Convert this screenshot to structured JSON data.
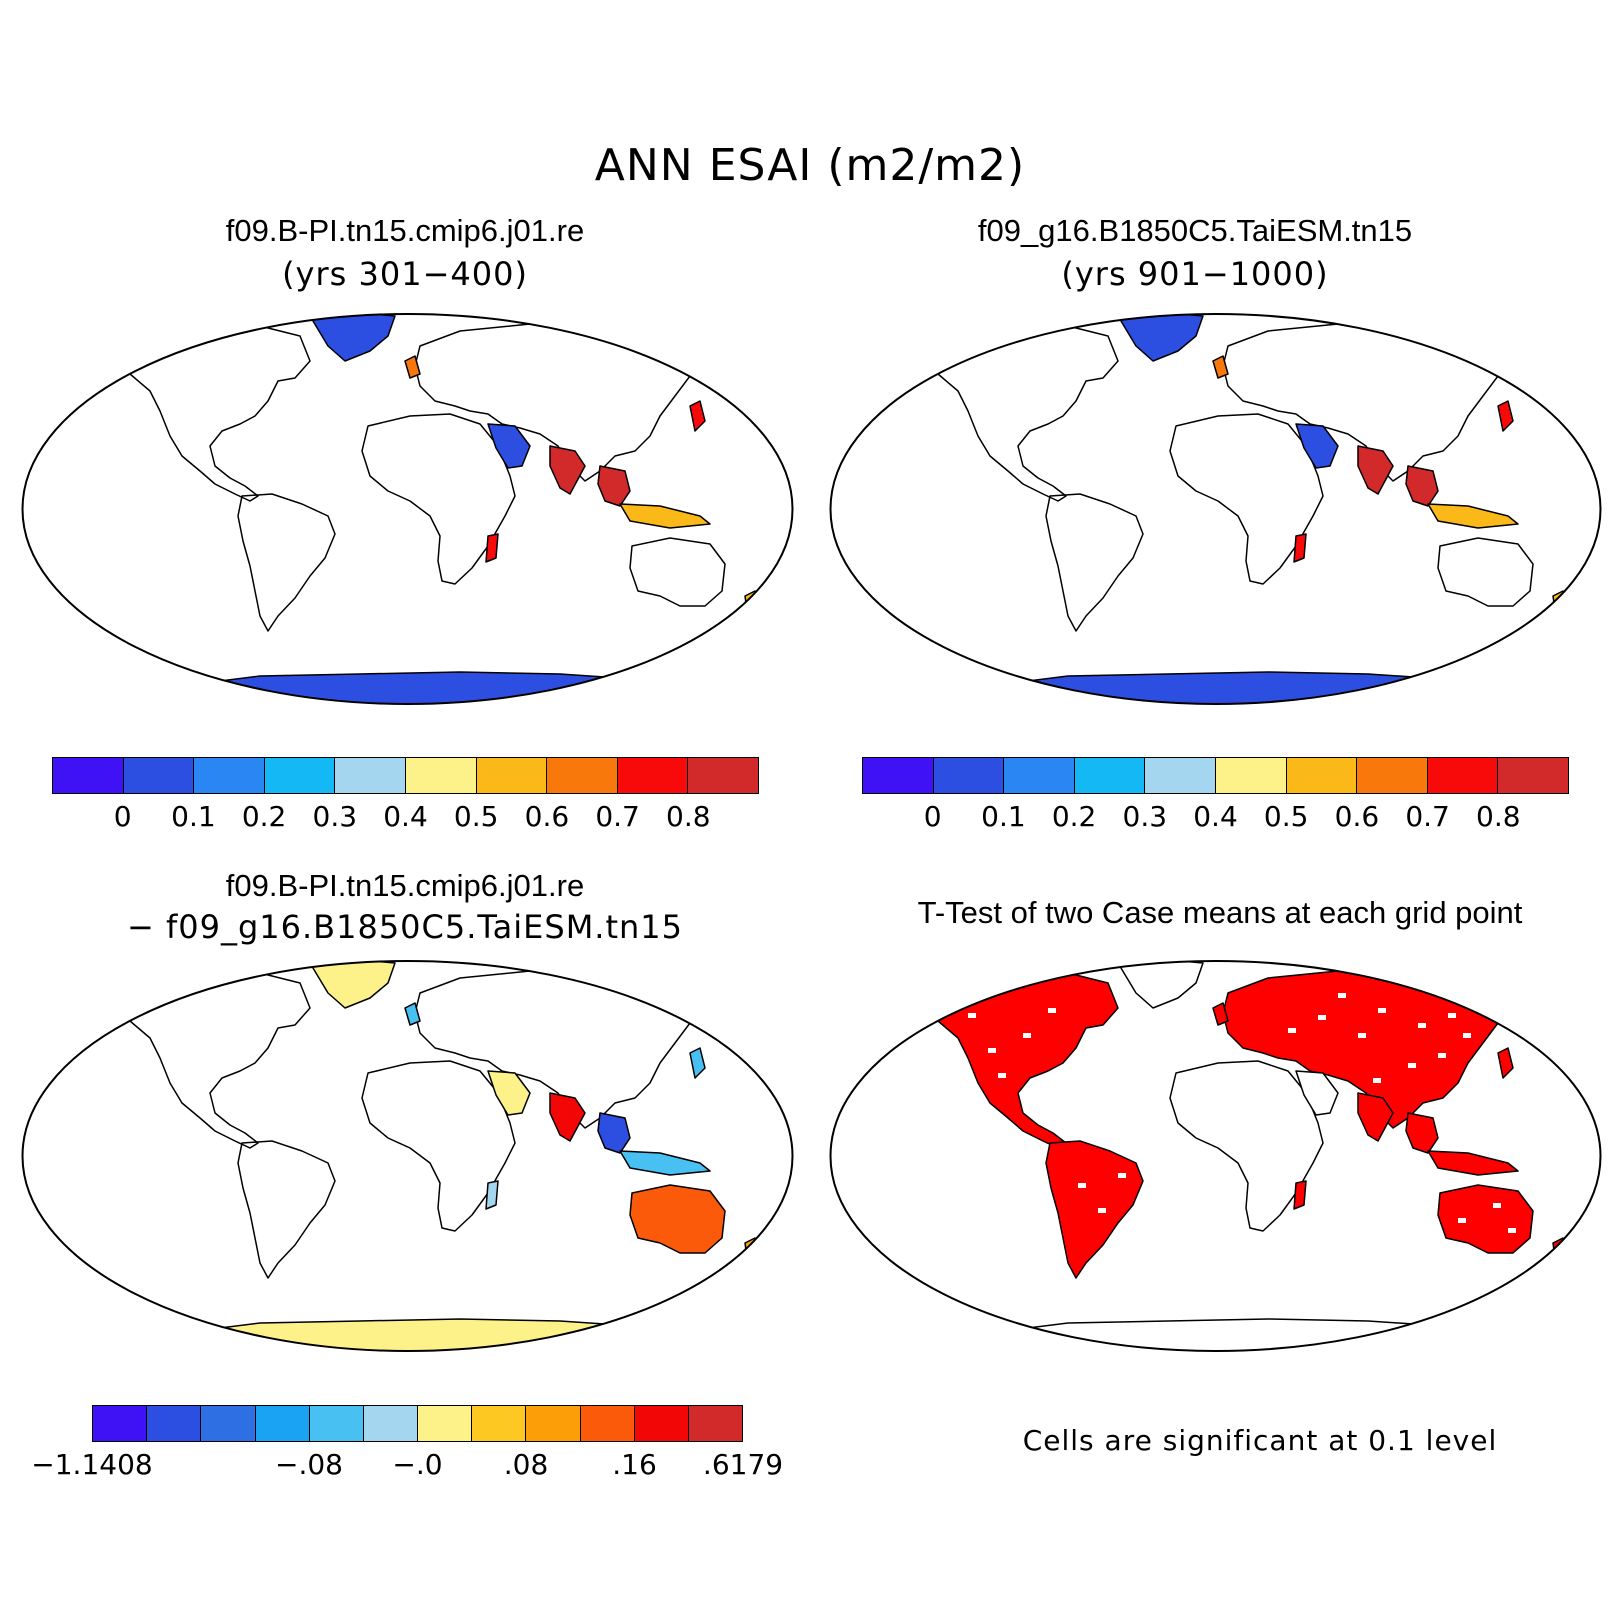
{
  "figure": {
    "title": "ANN ESAI (m2/m2)"
  },
  "panels": [
    {
      "id": "case1",
      "title": "f09.B-PI.tn15.cmip6.j01.re",
      "subtitle": "(yrs 301−400)",
      "scheme": "abs"
    },
    {
      "id": "case2",
      "title": "f09_g16.B1850C5.TaiESM.tn15",
      "subtitle": "(yrs 901−1000)",
      "scheme": "abs"
    },
    {
      "id": "diff",
      "title": "f09.B-PI.tn15.cmip6.j01.re",
      "subtitle": "− f09_g16.B1850C5.TaiESM.tn15",
      "scheme": "diff"
    },
    {
      "id": "ttest",
      "title": "T-Test of two Case means at each grid point",
      "subtitle": "",
      "scheme": "sig"
    }
  ],
  "colorbars": {
    "abs": {
      "colors": [
        "#3f12f5",
        "#2c4fe2",
        "#2a86f2",
        "#13b8f4",
        "#a4d6ef",
        "#fdf18a",
        "#fbb919",
        "#f8780b",
        "#f90a0a",
        "#d22a2a"
      ],
      "labels": [
        "0",
        "0.1",
        "0.2",
        "0.3",
        "0.4",
        "0.5",
        "0.6",
        "0.7",
        "0.8"
      ]
    },
    "diff": {
      "colors": [
        "#3f12f5",
        "#2c4fe2",
        "#2f6fe4",
        "#1aa3f2",
        "#49c0f2",
        "#a4d6ef",
        "#fdf18a",
        "#fdc821",
        "#fb9e08",
        "#fb5a0a",
        "#f20606",
        "#d22a2a"
      ],
      "labels": [
        "−1.1408",
        "−.08",
        "−.0",
        ".08",
        ".16",
        ".6179"
      ]
    }
  },
  "note": "Cells are significant at 0.1 level",
  "map_colors": {
    "dry": "#2c4fe2",
    "sig": "#ff0000",
    "diff_base": "#fdf18a"
  }
}
